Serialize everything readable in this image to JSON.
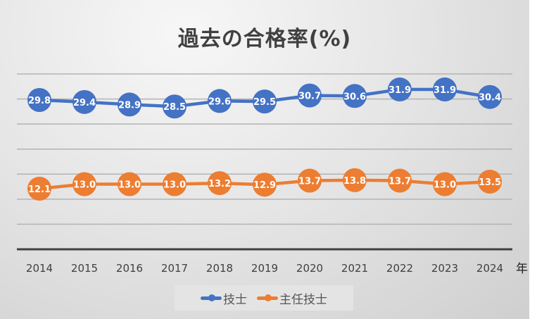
{
  "chart_data": {
    "type": "line",
    "title": "過去の合格率(%)",
    "xlabel": "年",
    "ylabel": "",
    "categories": [
      "2014",
      "2015",
      "2016",
      "2017",
      "2018",
      "2019",
      "2020",
      "2021",
      "2022",
      "2023",
      "2024"
    ],
    "ylim": [
      0,
      35
    ],
    "grid": true,
    "legend_position": "bottom",
    "series": [
      {
        "name": "技士",
        "color": "#4472c4",
        "values": [
          29.8,
          29.4,
          28.9,
          28.5,
          29.6,
          29.5,
          30.7,
          30.6,
          31.9,
          31.9,
          30.4
        ],
        "labels": [
          "29.8",
          "29.4",
          "28.9",
          "28.5",
          "29.6",
          "29.5",
          "30.7",
          "30.6",
          "31.9",
          "31.9",
          "30.4"
        ]
      },
      {
        "name": "主任技士",
        "color": "#ed7d31",
        "values": [
          12.1,
          13.0,
          13.0,
          13.0,
          13.2,
          12.9,
          13.7,
          13.8,
          13.7,
          13.0,
          13.5
        ],
        "labels": [
          "12.1",
          "13.0",
          "13.0",
          "13.0",
          "13.2",
          "12.9",
          "13.7",
          "13.8",
          "13.7",
          "13.0",
          "13.5"
        ]
      }
    ]
  }
}
